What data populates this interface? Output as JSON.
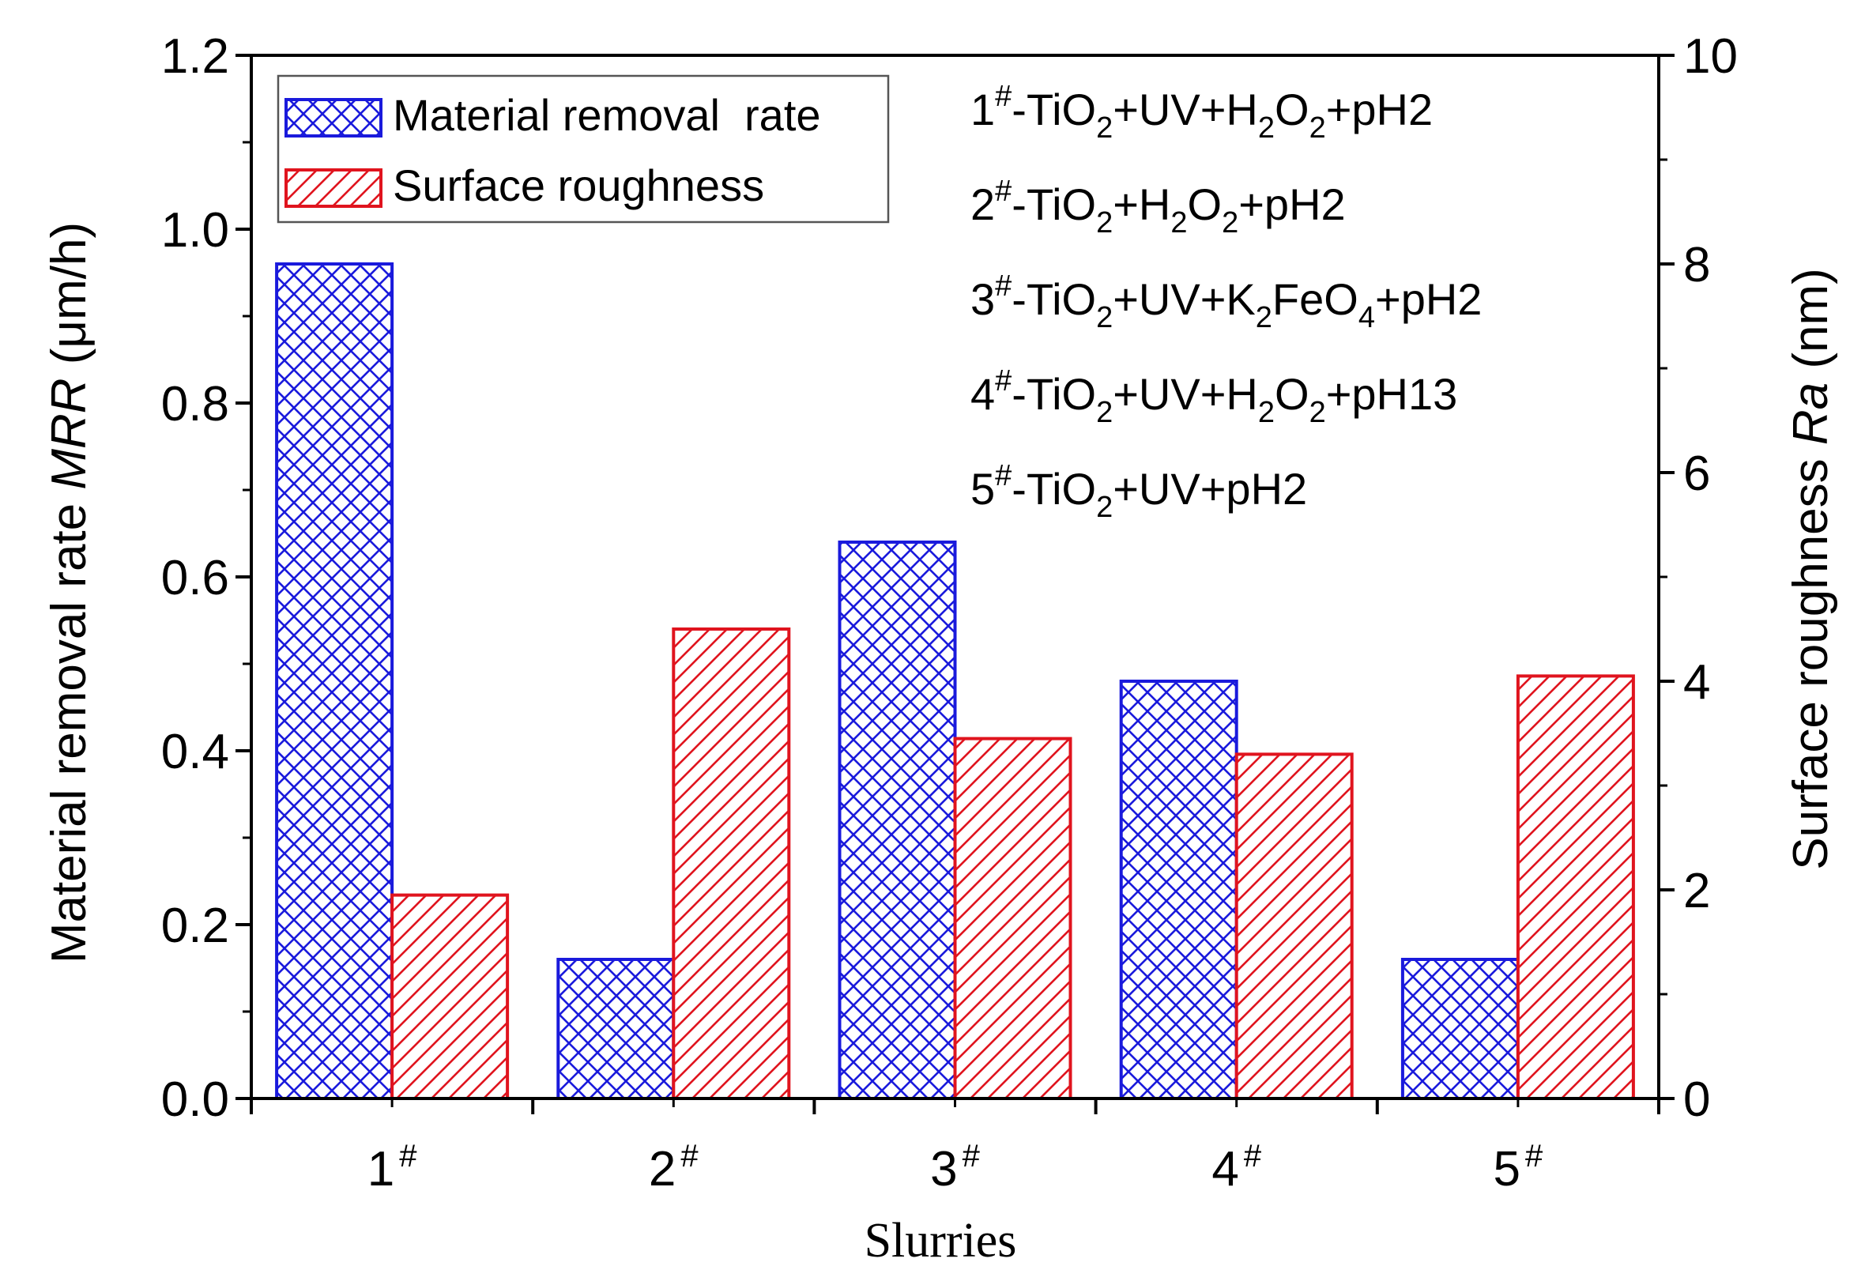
{
  "chart_data": {
    "type": "bar",
    "xlabel": "Slurries",
    "ylabel_left": {
      "text": "Material removal rate ",
      "italic": "MRR",
      "unit": " (μm/h)"
    },
    "ylabel_right": {
      "text": "Surface roughness ",
      "italic": "Ra",
      "unit": " (nm)"
    },
    "categories": [
      {
        "num": "1",
        "sup": "#"
      },
      {
        "num": "2",
        "sup": "#"
      },
      {
        "num": "3",
        "sup": "#"
      },
      {
        "num": "4",
        "sup": "#"
      },
      {
        "num": "5",
        "sup": "#"
      }
    ],
    "ylim_left": [
      0,
      1.2
    ],
    "yticks_left": [
      "0.0",
      "0.2",
      "0.4",
      "0.6",
      "0.8",
      "1.0",
      "1.2"
    ],
    "ylim_right": [
      0,
      10
    ],
    "yticks_right": [
      "0",
      "2",
      "4",
      "6",
      "8",
      "10"
    ],
    "series": [
      {
        "name": "Material removal  rate",
        "axis": "left",
        "color": "#1a1adc",
        "pattern": "crosshatch",
        "values": [
          0.96,
          0.16,
          0.64,
          0.48,
          0.16
        ]
      },
      {
        "name": "Surface roughness",
        "axis": "right",
        "color": "#e0141e",
        "pattern": "diagonal",
        "values": [
          1.95,
          4.5,
          3.45,
          3.3,
          4.05
        ]
      }
    ],
    "legend_position": "top-left",
    "annotations": [
      [
        {
          "t": "1"
        },
        {
          "t": "#",
          "s": "sup"
        },
        {
          "t": "-TiO"
        },
        {
          "t": "2",
          "s": "sub"
        },
        {
          "t": "+UV+H"
        },
        {
          "t": "2",
          "s": "sub"
        },
        {
          "t": "O"
        },
        {
          "t": "2",
          "s": "sub"
        },
        {
          "t": "+pH2"
        }
      ],
      [
        {
          "t": "2"
        },
        {
          "t": "#",
          "s": "sup"
        },
        {
          "t": "-TiO"
        },
        {
          "t": "2",
          "s": "sub"
        },
        {
          "t": "+H"
        },
        {
          "t": "2",
          "s": "sub"
        },
        {
          "t": "O"
        },
        {
          "t": "2",
          "s": "sub"
        },
        {
          "t": "+pH2"
        }
      ],
      [
        {
          "t": "3"
        },
        {
          "t": "#",
          "s": "sup"
        },
        {
          "t": "-TiO"
        },
        {
          "t": "2",
          "s": "sub"
        },
        {
          "t": "+UV+K"
        },
        {
          "t": "2",
          "s": "sub"
        },
        {
          "t": "FeO"
        },
        {
          "t": "4",
          "s": "sub"
        },
        {
          "t": "+pH2"
        }
      ],
      [
        {
          "t": "4"
        },
        {
          "t": "#",
          "s": "sup"
        },
        {
          "t": "-TiO"
        },
        {
          "t": "2",
          "s": "sub"
        },
        {
          "t": "+UV+H"
        },
        {
          "t": "2",
          "s": "sub"
        },
        {
          "t": "O"
        },
        {
          "t": "2",
          "s": "sub"
        },
        {
          "t": "+pH13"
        }
      ],
      [
        {
          "t": "5"
        },
        {
          "t": "#",
          "s": "sup"
        },
        {
          "t": "-TiO"
        },
        {
          "t": "2",
          "s": "sub"
        },
        {
          "t": "+UV+pH2"
        }
      ]
    ]
  }
}
